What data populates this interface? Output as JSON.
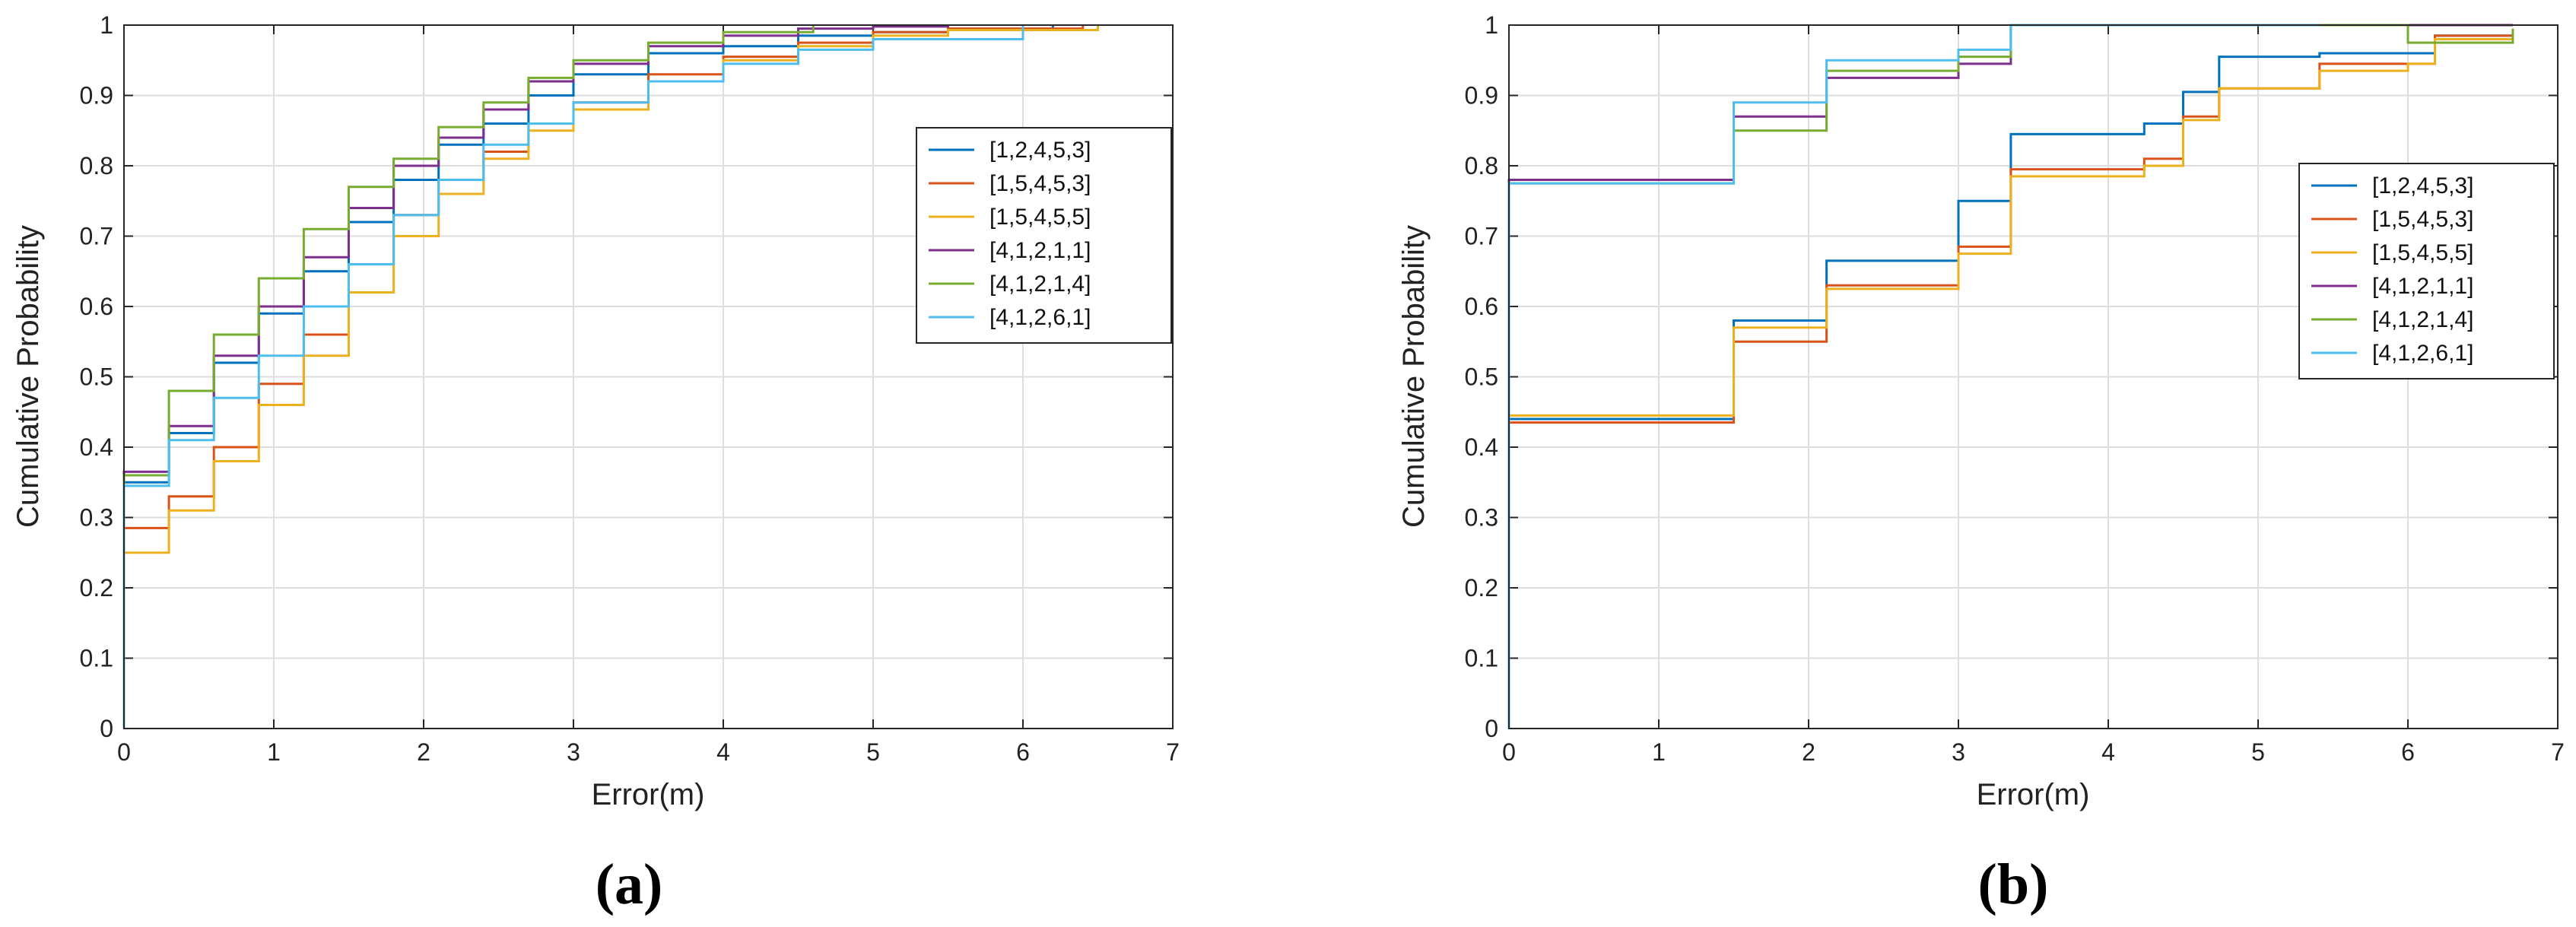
{
  "chart_data": [
    {
      "type": "line",
      "step": true,
      "panel_label": "(a)",
      "xlabel": "Error(m)",
      "ylabel": "Cumulative Probability",
      "xlim": [
        0,
        7
      ],
      "ylim": [
        0,
        1
      ],
      "xticks": [
        "0",
        "1",
        "2",
        "3",
        "4",
        "5",
        "6",
        "7"
      ],
      "yticks": [
        "0",
        "0.1",
        "0.2",
        "0.3",
        "0.4",
        "0.5",
        "0.6",
        "0.7",
        "0.8",
        "0.9",
        "1"
      ],
      "grid": true,
      "legend_position": "top-right",
      "series": [
        {
          "name": "[1,2,4,5,3]",
          "color": "#0072BD",
          "x": [
            0,
            0.3,
            0.6,
            0.9,
            1.2,
            1.5,
            1.8,
            2.1,
            2.4,
            2.7,
            3.0,
            3.5,
            4.0,
            4.5,
            5.0,
            5.5,
            6.2
          ],
          "y": [
            0.35,
            0.42,
            0.52,
            0.59,
            0.65,
            0.72,
            0.78,
            0.83,
            0.86,
            0.9,
            0.93,
            0.96,
            0.97,
            0.985,
            0.99,
            0.995,
            1.0
          ]
        },
        {
          "name": "[1,5,4,5,3]",
          "color": "#D95319",
          "x": [
            0,
            0.3,
            0.6,
            0.9,
            1.2,
            1.5,
            1.8,
            2.1,
            2.4,
            2.7,
            3.0,
            3.5,
            4.0,
            4.5,
            5.0,
            5.5,
            6.4
          ],
          "y": [
            0.285,
            0.33,
            0.4,
            0.49,
            0.56,
            0.66,
            0.73,
            0.78,
            0.82,
            0.86,
            0.89,
            0.93,
            0.955,
            0.975,
            0.99,
            0.995,
            1.0
          ]
        },
        {
          "name": "[1,5,4,5,5]",
          "color": "#EDB120",
          "x": [
            0,
            0.3,
            0.6,
            0.9,
            1.2,
            1.5,
            1.8,
            2.1,
            2.4,
            2.7,
            3.0,
            3.5,
            4.0,
            4.5,
            5.0,
            5.5,
            6.5
          ],
          "y": [
            0.25,
            0.31,
            0.38,
            0.46,
            0.53,
            0.62,
            0.7,
            0.76,
            0.81,
            0.85,
            0.88,
            0.92,
            0.95,
            0.97,
            0.985,
            0.993,
            1.0
          ]
        },
        {
          "name": "[4,1,2,1,1]",
          "color": "#7E2F8E",
          "x": [
            0,
            0.3,
            0.6,
            0.9,
            1.2,
            1.5,
            1.8,
            2.1,
            2.4,
            2.7,
            3.0,
            3.5,
            4.0,
            4.5,
            5.0,
            5.5
          ],
          "y": [
            0.365,
            0.43,
            0.53,
            0.6,
            0.67,
            0.74,
            0.8,
            0.84,
            0.88,
            0.92,
            0.945,
            0.97,
            0.985,
            0.995,
            0.998,
            1.0
          ]
        },
        {
          "name": "[4,1,2,1,4]",
          "color": "#77AC30",
          "x": [
            0,
            0.3,
            0.6,
            0.9,
            1.2,
            1.5,
            1.8,
            2.1,
            2.4,
            2.7,
            3.0,
            3.5,
            4.0,
            4.6
          ],
          "y": [
            0.36,
            0.48,
            0.56,
            0.64,
            0.71,
            0.77,
            0.81,
            0.855,
            0.89,
            0.925,
            0.95,
            0.975,
            0.99,
            1.0
          ]
        },
        {
          "name": "[4,1,2,6,1]",
          "color": "#4DBEEE",
          "x": [
            0,
            0.3,
            0.6,
            0.9,
            1.2,
            1.5,
            1.8,
            2.1,
            2.4,
            2.7,
            3.0,
            3.5,
            4.0,
            4.5,
            5.0,
            6.0
          ],
          "y": [
            0.345,
            0.41,
            0.47,
            0.53,
            0.6,
            0.66,
            0.73,
            0.78,
            0.83,
            0.86,
            0.89,
            0.92,
            0.945,
            0.965,
            0.98,
            1.0
          ]
        }
      ]
    },
    {
      "type": "line",
      "step": true,
      "panel_label": "(b)",
      "xlabel": "Error(m)",
      "ylabel": "Cumulative Probability",
      "xlim": [
        0,
        7
      ],
      "ylim": [
        0,
        1
      ],
      "xticks": [
        "0",
        "1",
        "2",
        "3",
        "4",
        "5",
        "6",
        "7"
      ],
      "yticks": [
        "0",
        "0.1",
        "0.2",
        "0.3",
        "0.4",
        "0.5",
        "0.6",
        "0.7",
        "0.8",
        "0.9",
        "1"
      ],
      "grid": true,
      "legend_position": "right",
      "series": [
        {
          "name": "[1,2,4,5,3]",
          "color": "#0072BD",
          "x": [
            0,
            1.5,
            2.12,
            3.0,
            3.35,
            4.24,
            4.5,
            4.74,
            5.0,
            5.41,
            6.0,
            6.18,
            6.7
          ],
          "y": [
            0.44,
            0.58,
            0.665,
            0.75,
            0.845,
            0.86,
            0.905,
            0.955,
            0.955,
            0.96,
            0.96,
            0.985,
            0.985
          ]
        },
        {
          "name": "[1,5,4,5,3]",
          "color": "#D95319",
          "x": [
            0,
            1.5,
            2.12,
            3.0,
            3.35,
            4.24,
            4.5,
            4.74,
            5.0,
            5.41,
            6.0,
            6.18,
            6.7
          ],
          "y": [
            0.435,
            0.55,
            0.63,
            0.685,
            0.795,
            0.81,
            0.87,
            0.91,
            0.91,
            0.945,
            0.945,
            0.985,
            0.985
          ]
        },
        {
          "name": "[1,5,4,5,5]",
          "color": "#EDB120",
          "x": [
            0,
            1.5,
            2.12,
            3.0,
            3.35,
            4.24,
            4.5,
            4.74,
            5.0,
            5.41,
            6.0,
            6.18,
            6.7
          ],
          "y": [
            0.445,
            0.57,
            0.625,
            0.675,
            0.785,
            0.8,
            0.865,
            0.91,
            0.91,
            0.935,
            0.945,
            0.98,
            0.985
          ]
        },
        {
          "name": "[4,1,2,1,1]",
          "color": "#7E2F8E",
          "x": [
            0,
            1.5,
            2.12,
            3.0,
            3.35,
            4.24,
            5.0,
            6.0,
            6.7
          ],
          "y": [
            0.78,
            0.87,
            0.925,
            0.945,
            1.0,
            1.0,
            1.0,
            1.0,
            1.0
          ]
        },
        {
          "name": "[4,1,2,1,4]",
          "color": "#77AC30",
          "x": [
            0,
            1.5,
            2.12,
            3.0,
            3.35,
            4.24,
            5.0,
            6.0,
            6.7
          ],
          "y": [
            0.775,
            0.85,
            0.935,
            0.955,
            1.0,
            1.0,
            1.0,
            0.975,
            0.995
          ]
        },
        {
          "name": "[4,1,2,6,1]",
          "color": "#4DBEEE",
          "x": [
            0,
            1.5,
            2.12,
            3.0,
            3.35,
            4.24,
            5.0,
            5.41
          ],
          "y": [
            0.775,
            0.89,
            0.95,
            0.965,
            1.0,
            1.0,
            1.0,
            1.0
          ]
        }
      ]
    }
  ]
}
